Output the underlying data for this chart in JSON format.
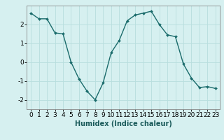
{
  "title": "",
  "xlabel": "Humidex (Indice chaleur)",
  "ylabel": "",
  "background_color": "#d6f0f0",
  "grid_color": "#b8dede",
  "line_color": "#1a6b6b",
  "marker_color": "#1a6b6b",
  "x": [
    0,
    1,
    2,
    3,
    4,
    5,
    6,
    7,
    8,
    9,
    10,
    11,
    12,
    13,
    14,
    15,
    16,
    17,
    18,
    19,
    20,
    21,
    22,
    23
  ],
  "y": [
    2.6,
    2.3,
    2.3,
    1.55,
    1.5,
    0.0,
    -0.9,
    -1.55,
    -2.0,
    -1.1,
    0.5,
    1.15,
    2.2,
    2.5,
    2.6,
    2.7,
    2.0,
    1.45,
    1.35,
    -0.1,
    -0.85,
    -1.35,
    -1.3,
    -1.4
  ],
  "xlim": [
    -0.5,
    23.5
  ],
  "ylim": [
    -2.5,
    3.0
  ],
  "yticks": [
    -2,
    -1,
    0,
    1,
    2
  ],
  "xticks": [
    0,
    1,
    2,
    3,
    4,
    5,
    6,
    7,
    8,
    9,
    10,
    11,
    12,
    13,
    14,
    15,
    16,
    17,
    18,
    19,
    20,
    21,
    22,
    23
  ],
  "xlabel_fontsize": 7,
  "tick_fontsize": 6.5
}
